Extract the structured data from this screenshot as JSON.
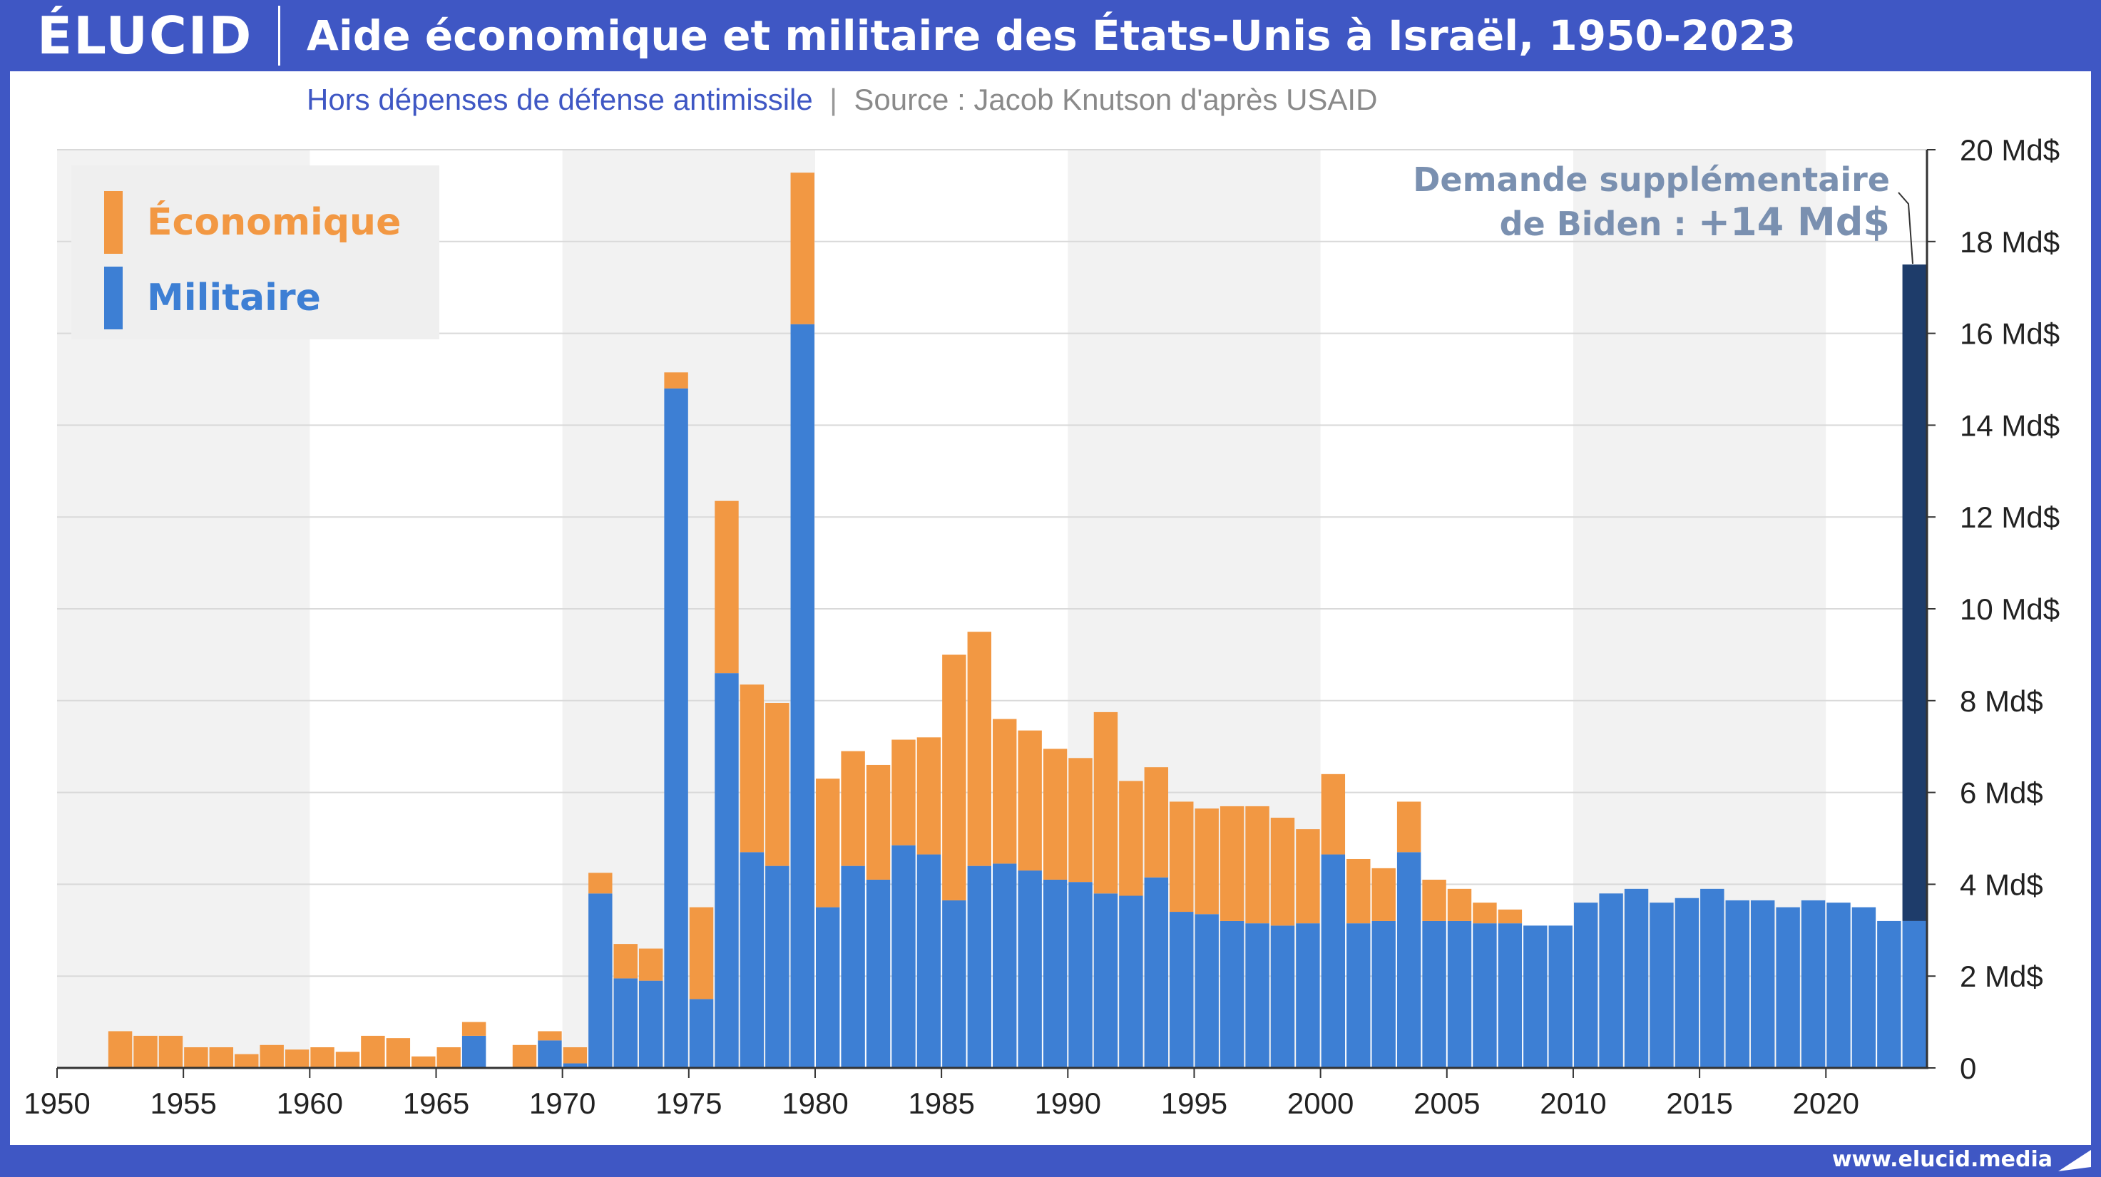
{
  "brand": {
    "logo_text": "ÉLUCID",
    "url": "www.elucid.media",
    "colors": {
      "frame": "#3f57c4",
      "economic": "#f29843",
      "military": "#3d7fd4",
      "request": "#1e3c6a",
      "annotation": "#7a90b0"
    }
  },
  "header": {
    "title": "Aide économique et militaire des États-Unis à Israël, 1950-2023",
    "subtitle": "Hors dépenses de défense antimissile",
    "separator": "|",
    "source": "Source : Jacob Knutson d'après USAID"
  },
  "chart_data": {
    "type": "bar",
    "stacked": true,
    "ylim": [
      0,
      20
    ],
    "y_ticks": [
      0,
      2,
      4,
      6,
      8,
      10,
      12,
      14,
      16,
      18,
      20
    ],
    "y_tick_labels": [
      "0",
      "2 Md$",
      "4 Md$",
      "6 Md$",
      "8 Md$",
      "10 Md$",
      "12 Md$",
      "14 Md$",
      "16 Md$",
      "18 Md$",
      "20 Md$"
    ],
    "y_axis_position": "right",
    "x_ticks": [
      1950,
      1955,
      1960,
      1965,
      1970,
      1975,
      1980,
      1985,
      1990,
      1995,
      2000,
      2005,
      2010,
      2015,
      2020
    ],
    "x_tick_labels": [
      "1950",
      "1955",
      "1960",
      "1965",
      "1970",
      "1975",
      "1980",
      "1985",
      "1990",
      "1995",
      "2000",
      "2005",
      "2010",
      "2015",
      "2020"
    ],
    "legend": {
      "position": "top-left",
      "entries": [
        {
          "label": "Économique",
          "color": "#f29843"
        },
        {
          "label": "Militaire",
          "color": "#3d7fd4"
        }
      ]
    },
    "years": [
      1950,
      1951,
      1952,
      1953,
      1954,
      1955,
      1956,
      1957,
      1958,
      1959,
      1960,
      1961,
      1962,
      1963,
      1964,
      1965,
      1966,
      1967,
      1968,
      1969,
      1970,
      1971,
      1972,
      1973,
      1974,
      1975,
      1976,
      1977,
      1978,
      1979,
      1980,
      1981,
      1982,
      1983,
      1984,
      1985,
      1986,
      1987,
      1988,
      1989,
      1990,
      1991,
      1992,
      1993,
      1994,
      1995,
      1996,
      1997,
      1998,
      1999,
      2000,
      2001,
      2002,
      2003,
      2004,
      2005,
      2006,
      2007,
      2008,
      2009,
      2010,
      2011,
      2012,
      2013,
      2014,
      2015,
      2016,
      2017,
      2018,
      2019,
      2020,
      2021,
      2022,
      2023
    ],
    "series": [
      {
        "name": "Militaire",
        "color": "#3d7fd4",
        "values": [
          0,
          0,
          0,
          0,
          0,
          0,
          0,
          0,
          0,
          0,
          0,
          0,
          0,
          0,
          0,
          0,
          0.7,
          0,
          0,
          0.6,
          0.1,
          3.8,
          1.95,
          1.9,
          14.8,
          1.5,
          8.6,
          4.7,
          4.4,
          16.2,
          3.5,
          4.4,
          4.1,
          4.85,
          4.65,
          3.65,
          4.4,
          4.45,
          4.3,
          4.1,
          4.05,
          3.8,
          3.75,
          4.15,
          3.4,
          3.35,
          3.2,
          3.15,
          3.1,
          3.15,
          4.65,
          3.15,
          3.2,
          4.7,
          3.2,
          3.2,
          3.15,
          3.15,
          3.1,
          3.1,
          3.6,
          3.8,
          3.9,
          3.6,
          3.7,
          3.9,
          3.65,
          3.65,
          3.5,
          3.65,
          3.6,
          3.5,
          3.2,
          3.2
        ]
      },
      {
        "name": "Économique",
        "color": "#f29843",
        "values": [
          0,
          0,
          0.8,
          0.7,
          0.7,
          0.45,
          0.45,
          0.3,
          0.5,
          0.4,
          0.45,
          0.35,
          0.7,
          0.65,
          0.25,
          0.45,
          0.3,
          0,
          0.5,
          0.2,
          0.35,
          0.45,
          0.75,
          0.7,
          0.35,
          2.0,
          3.75,
          3.65,
          3.55,
          3.3,
          2.8,
          2.5,
          2.5,
          2.3,
          2.55,
          5.35,
          5.1,
          3.15,
          3.05,
          2.85,
          2.7,
          3.95,
          2.5,
          2.4,
          2.4,
          2.3,
          2.5,
          2.55,
          2.35,
          2.05,
          1.75,
          1.4,
          1.15,
          1.1,
          0.9,
          0.7,
          0.45,
          0.3,
          0,
          0,
          0,
          0,
          0,
          0,
          0,
          0,
          0,
          0,
          0,
          0,
          0,
          0,
          0,
          0
        ]
      }
    ],
    "request": {
      "year": 2023,
      "base": 3.2,
      "added": 14.3,
      "color": "#1e3c6a"
    },
    "annotation": {
      "line1": "Demande supplémentaire",
      "line2_prefix": "de Biden : ",
      "line2_value": "+14 Md$"
    }
  }
}
